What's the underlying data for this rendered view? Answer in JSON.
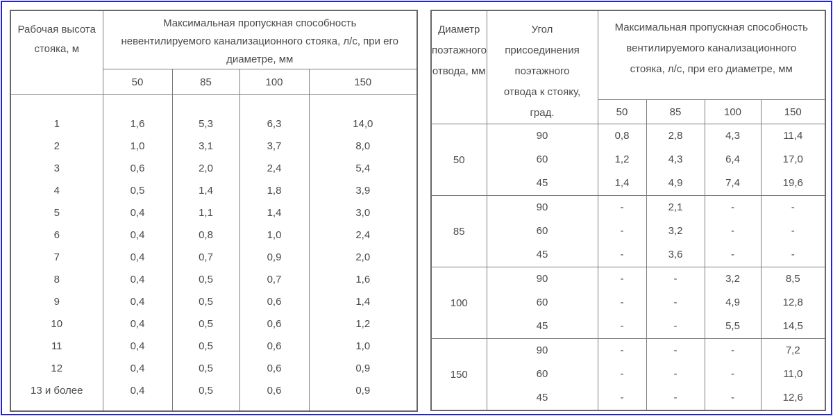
{
  "page": {
    "frame_color": "#2323d9",
    "table_border_color": "#7d7d7d",
    "table_border_dark": "#676767",
    "text_color": "#4a4a4a",
    "background": "#ffffff"
  },
  "left_table": {
    "corner_header_lines": [
      "Рабочая высота",
      "стояка, м"
    ],
    "span_header_lines": [
      "Максимальная пропускная способность",
      "невентилируемого канализационного стояка, л/с, при его",
      "диаметре, мм"
    ],
    "diameter_headers": [
      "50",
      "85",
      "100",
      "150"
    ],
    "rows": [
      {
        "height": "1",
        "values": [
          "1,6",
          "5,3",
          "6,3",
          "14,0"
        ]
      },
      {
        "height": "2",
        "values": [
          "1,0",
          "3,1",
          "3,7",
          "8,0"
        ]
      },
      {
        "height": "3",
        "values": [
          "0,6",
          "2,0",
          "2,4",
          "5,4"
        ]
      },
      {
        "height": "4",
        "values": [
          "0,5",
          "1,4",
          "1,8",
          "3,9"
        ]
      },
      {
        "height": "5",
        "values": [
          "0,4",
          "1,1",
          "1,4",
          "3,0"
        ]
      },
      {
        "height": "6",
        "values": [
          "0,4",
          "0,8",
          "1,0",
          "2,4"
        ]
      },
      {
        "height": "7",
        "values": [
          "0,4",
          "0,7",
          "0,9",
          "2,0"
        ]
      },
      {
        "height": "8",
        "values": [
          "0,4",
          "0,5",
          "0,7",
          "1,6"
        ]
      },
      {
        "height": "9",
        "values": [
          "0,4",
          "0,5",
          "0,6",
          "1,4"
        ]
      },
      {
        "height": "10",
        "values": [
          "0,4",
          "0,5",
          "0,6",
          "1,2"
        ]
      },
      {
        "height": "11",
        "values": [
          "0,4",
          "0,5",
          "0,6",
          "1,0"
        ]
      },
      {
        "height": "12",
        "values": [
          "0,4",
          "0,5",
          "0,6",
          "0,9"
        ]
      },
      {
        "height": "13 и более",
        "values": [
          "0,4",
          "0,5",
          "0,6",
          "0,9"
        ]
      }
    ]
  },
  "right_table": {
    "col0_header_lines": [
      "Диаметр",
      "поэтажного",
      "отвода, мм"
    ],
    "col1_header_lines": [
      "Угол",
      "присоединения",
      "поэтажного",
      "отвода к стояку,",
      "град."
    ],
    "span_header_lines": [
      "Максимальная пропускная способность",
      "вентилируемого канализационного",
      "стояка, л/с, при его диаметре, мм"
    ],
    "diameter_headers": [
      "50",
      "85",
      "100",
      "150"
    ],
    "groups": [
      {
        "diameter": "50",
        "angles": [
          "90",
          "60",
          "45"
        ],
        "values": [
          [
            "0,8",
            "2,8",
            "4,3",
            "11,4"
          ],
          [
            "1,2",
            "4,3",
            "6,4",
            "17,0"
          ],
          [
            "1,4",
            "4,9",
            "7,4",
            "19,6"
          ]
        ]
      },
      {
        "diameter": "85",
        "angles": [
          "90",
          "60",
          "45"
        ],
        "values": [
          [
            "-",
            "2,1",
            "-",
            "-"
          ],
          [
            "-",
            "3,2",
            "-",
            "-"
          ],
          [
            "-",
            "3,6",
            "-",
            "-"
          ]
        ]
      },
      {
        "diameter": "100",
        "angles": [
          "90",
          "60",
          "45"
        ],
        "values": [
          [
            "-",
            "-",
            "3,2",
            "8,5"
          ],
          [
            "-",
            "-",
            "4,9",
            "12,8"
          ],
          [
            "-",
            "-",
            "5,5",
            "14,5"
          ]
        ]
      },
      {
        "diameter": "150",
        "angles": [
          "90",
          "60",
          "45"
        ],
        "values": [
          [
            "-",
            "-",
            "-",
            "7,2"
          ],
          [
            "-",
            "-",
            "-",
            "11,0"
          ],
          [
            "-",
            "-",
            "-",
            "12,6"
          ]
        ]
      }
    ]
  }
}
